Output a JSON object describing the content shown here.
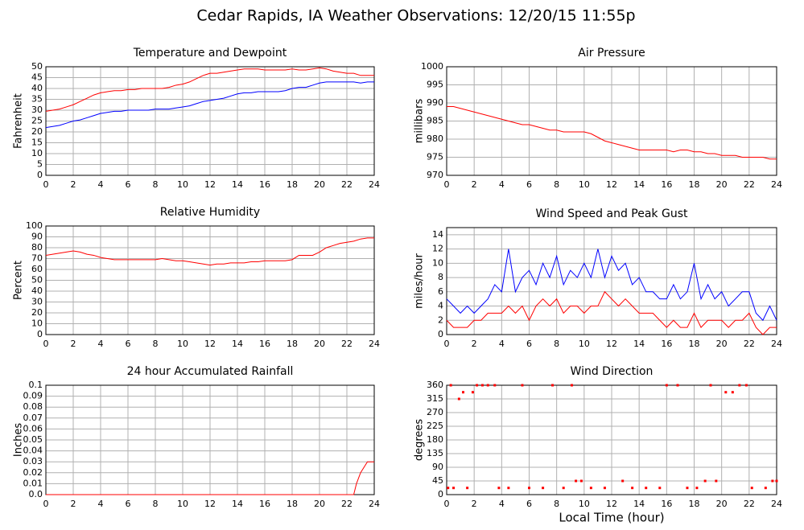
{
  "title": "Cedar Rapids, IA Weather Observations: 12/20/15 11:55p",
  "x_label": "Local Time (hour)",
  "chart_data": [
    {
      "type": "line",
      "title": "Temperature and Dewpoint",
      "y_label": "Fahrenheit",
      "x": [
        0,
        0.5,
        1,
        1.5,
        2,
        2.5,
        3,
        3.5,
        4,
        4.5,
        5,
        5.5,
        6,
        6.5,
        7,
        7.5,
        8,
        8.5,
        9,
        9.5,
        10,
        10.5,
        11,
        11.5,
        12,
        12.5,
        13,
        13.5,
        14,
        14.5,
        15,
        15.5,
        16,
        16.5,
        17,
        17.5,
        18,
        18.5,
        19,
        19.5,
        20,
        20.5,
        21,
        21.5,
        22,
        22.5,
        23,
        23.5,
        24
      ],
      "series": [
        {
          "color": "#ff0000",
          "values": [
            29.5,
            30,
            30.5,
            31.5,
            32.5,
            34,
            35.5,
            37,
            38,
            38.5,
            39,
            39,
            39.5,
            39.5,
            40,
            40,
            40,
            40,
            40.5,
            41.5,
            42,
            43,
            44.5,
            46,
            47,
            47,
            47.5,
            48,
            48.5,
            49,
            49,
            49,
            48.5,
            48.5,
            48.5,
            48.5,
            49,
            48.5,
            48.5,
            49,
            49.5,
            49,
            48,
            47.5,
            47,
            47,
            46,
            46,
            46
          ]
        },
        {
          "color": "#0000ff",
          "values": [
            22,
            22.5,
            23,
            24,
            25,
            25.5,
            26.5,
            27.5,
            28.5,
            29,
            29.5,
            29.5,
            30,
            30,
            30,
            30,
            30.5,
            30.5,
            30.5,
            31,
            31.5,
            32,
            33,
            34,
            34.5,
            35,
            35.5,
            36.5,
            37.5,
            38,
            38,
            38.5,
            38.5,
            38.5,
            38.5,
            39,
            40,
            40.5,
            40.5,
            41.5,
            42.5,
            43,
            43,
            43,
            43,
            43,
            42.5,
            43,
            43
          ]
        }
      ],
      "xlim": [
        0,
        24
      ],
      "xticks": [
        0,
        2,
        4,
        6,
        8,
        10,
        12,
        14,
        16,
        18,
        20,
        22,
        24
      ],
      "ylim": [
        0,
        50
      ],
      "yticks": [
        0,
        5,
        10,
        15,
        20,
        25,
        30,
        35,
        40,
        45,
        50
      ],
      "grid": true
    },
    {
      "type": "line",
      "title": "Air Pressure",
      "y_label": "millibars",
      "x": [
        0,
        0.5,
        1,
        1.5,
        2,
        2.5,
        3,
        3.5,
        4,
        4.5,
        5,
        5.5,
        6,
        6.5,
        7,
        7.5,
        8,
        8.5,
        9,
        9.5,
        10,
        10.5,
        11,
        11.5,
        12,
        12.5,
        13,
        13.5,
        14,
        14.5,
        15,
        15.5,
        16,
        16.5,
        17,
        17.5,
        18,
        18.5,
        19,
        19.5,
        20,
        20.5,
        21,
        21.5,
        22,
        22.5,
        23,
        23.5,
        24
      ],
      "series": [
        {
          "color": "#ff0000",
          "values": [
            989,
            989,
            988.5,
            988,
            987.5,
            987,
            986.5,
            986,
            985.5,
            985,
            984.5,
            984,
            984,
            983.5,
            983,
            982.5,
            982.5,
            982,
            982,
            982,
            982,
            981.5,
            980.5,
            979.5,
            979,
            978.5,
            978,
            977.5,
            977,
            977,
            977,
            977,
            977,
            976.5,
            977,
            977,
            976.5,
            976.5,
            976,
            976,
            975.5,
            975.5,
            975.5,
            975,
            975,
            975,
            975,
            974.5,
            974.5
          ]
        }
      ],
      "xlim": [
        0,
        24
      ],
      "xticks": [
        0,
        2,
        4,
        6,
        8,
        10,
        12,
        14,
        16,
        18,
        20,
        22,
        24
      ],
      "ylim": [
        970,
        1000
      ],
      "yticks": [
        970,
        975,
        980,
        985,
        990,
        995,
        1000
      ],
      "grid": true
    },
    {
      "type": "line",
      "title": "Relative Humidity",
      "y_label": "Percent",
      "x": [
        0,
        0.5,
        1,
        1.5,
        2,
        2.5,
        3,
        3.5,
        4,
        4.5,
        5,
        5.5,
        6,
        6.5,
        7,
        7.5,
        8,
        8.5,
        9,
        9.5,
        10,
        10.5,
        11,
        11.5,
        12,
        12.5,
        13,
        13.5,
        14,
        14.5,
        15,
        15.5,
        16,
        16.5,
        17,
        17.5,
        18,
        18.5,
        19,
        19.5,
        20,
        20.5,
        21,
        21.5,
        22,
        22.5,
        23,
        23.5,
        24
      ],
      "series": [
        {
          "color": "#ff0000",
          "values": [
            73,
            74,
            75,
            76,
            77,
            76,
            74,
            73,
            71,
            70,
            69,
            69,
            69,
            69,
            69,
            69,
            69,
            70,
            69,
            68,
            68,
            67,
            66,
            65,
            64,
            65,
            65,
            66,
            66,
            66,
            67,
            67,
            68,
            68,
            68,
            68,
            69,
            73,
            73,
            73,
            76,
            80,
            82,
            84,
            85,
            86,
            88,
            89,
            89
          ]
        }
      ],
      "xlim": [
        0,
        24
      ],
      "xticks": [
        0,
        2,
        4,
        6,
        8,
        10,
        12,
        14,
        16,
        18,
        20,
        22,
        24
      ],
      "ylim": [
        0,
        100
      ],
      "yticks": [
        0,
        10,
        20,
        30,
        40,
        50,
        60,
        70,
        80,
        90,
        100
      ],
      "grid": true
    },
    {
      "type": "line",
      "title": "Wind Speed and Peak Gust",
      "y_label": "miles/hour",
      "x": [
        0,
        0.5,
        1,
        1.5,
        2,
        2.5,
        3,
        3.5,
        4,
        4.5,
        5,
        5.5,
        6,
        6.5,
        7,
        7.5,
        8,
        8.5,
        9,
        9.5,
        10,
        10.5,
        11,
        11.5,
        12,
        12.5,
        13,
        13.5,
        14,
        14.5,
        15,
        15.5,
        16,
        16.5,
        17,
        17.5,
        18,
        18.5,
        19,
        19.5,
        20,
        20.5,
        21,
        21.5,
        22,
        22.5,
        23,
        23.5,
        24
      ],
      "series": [
        {
          "color": "#0000ff",
          "values": [
            5,
            4,
            3,
            4,
            3,
            4,
            5,
            7,
            6,
            12,
            6,
            8,
            9,
            7,
            10,
            8,
            11,
            7,
            9,
            8,
            10,
            8,
            12,
            8,
            11,
            9,
            10,
            7,
            8,
            6,
            6,
            5,
            5,
            7,
            5,
            6,
            10,
            5,
            7,
            5,
            6,
            4,
            5,
            6,
            6,
            3,
            2,
            4,
            2
          ]
        },
        {
          "color": "#ff0000",
          "values": [
            2,
            1,
            1,
            1,
            2,
            2,
            3,
            3,
            3,
            4,
            3,
            4,
            2,
            4,
            5,
            4,
            5,
            3,
            4,
            4,
            3,
            4,
            4,
            6,
            5,
            4,
            5,
            4,
            3,
            3,
            3,
            2,
            1,
            2,
            1,
            1,
            3,
            1,
            2,
            2,
            2,
            1,
            2,
            2,
            3,
            1,
            0,
            1,
            1
          ]
        }
      ],
      "xlim": [
        0,
        24
      ],
      "xticks": [
        0,
        2,
        4,
        6,
        8,
        10,
        12,
        14,
        16,
        18,
        20,
        22,
        24
      ],
      "ylim": [
        0,
        15
      ],
      "yticks": [
        0,
        2,
        4,
        6,
        8,
        10,
        12,
        14
      ],
      "grid": true
    },
    {
      "type": "line",
      "title": "24 hour Accumulated Rainfall",
      "y_label": "Inches",
      "x": [
        0,
        2,
        4,
        6,
        8,
        10,
        12,
        14,
        16,
        18,
        20,
        22,
        22.5,
        22.7,
        23,
        23.5,
        24
      ],
      "series": [
        {
          "color": "#ff0000",
          "values": [
            0,
            0,
            0,
            0,
            0,
            0,
            0,
            0,
            0,
            0,
            0,
            0,
            0,
            0.01,
            0.02,
            0.03,
            0.03
          ]
        }
      ],
      "xlim": [
        0,
        24
      ],
      "xticks": [
        0,
        2,
        4,
        6,
        8,
        10,
        12,
        14,
        16,
        18,
        20,
        22,
        24
      ],
      "ylim": [
        0,
        0.1
      ],
      "yticks": [
        {
          "value": 0,
          "label": "0.0"
        },
        0.01,
        0.02,
        0.03,
        0.04,
        0.05,
        0.06,
        0.07,
        0.08,
        0.09,
        0.1
      ],
      "grid": true
    },
    {
      "type": "scatter",
      "title": "Wind Direction",
      "y_label": "degrees",
      "x": [
        0.1,
        0.3,
        0.5,
        0.9,
        1.2,
        1.5,
        1.9,
        2.2,
        2.6,
        3.0,
        3.5,
        3.8,
        4.5,
        5.5,
        6,
        7,
        7.7,
        8.5,
        9.1,
        9.4,
        9.8,
        10.5,
        11.5,
        12.8,
        13.5,
        14.5,
        15.5,
        16,
        16.8,
        17.5,
        18.2,
        18.8,
        19.2,
        19.6,
        20.3,
        20.8,
        21.3,
        21.8,
        22.2,
        23.2,
        23.7,
        24
      ],
      "color": "#ff0000",
      "values": [
        22,
        360,
        22,
        315,
        337,
        22,
        337,
        360,
        360,
        360,
        360,
        22,
        22,
        360,
        22,
        22,
        360,
        22,
        360,
        45,
        45,
        22,
        22,
        45,
        22,
        22,
        22,
        360,
        360,
        22,
        22,
        45,
        360,
        45,
        337,
        337,
        360,
        360,
        22,
        22,
        45,
        45
      ],
      "xlim": [
        0,
        24
      ],
      "xticks": [
        0,
        2,
        4,
        6,
        8,
        10,
        12,
        14,
        16,
        18,
        20,
        22,
        24
      ],
      "ylim": [
        0,
        360
      ],
      "yticks": [
        0,
        45,
        90,
        135,
        180,
        225,
        270,
        315,
        360
      ],
      "grid": true
    }
  ]
}
